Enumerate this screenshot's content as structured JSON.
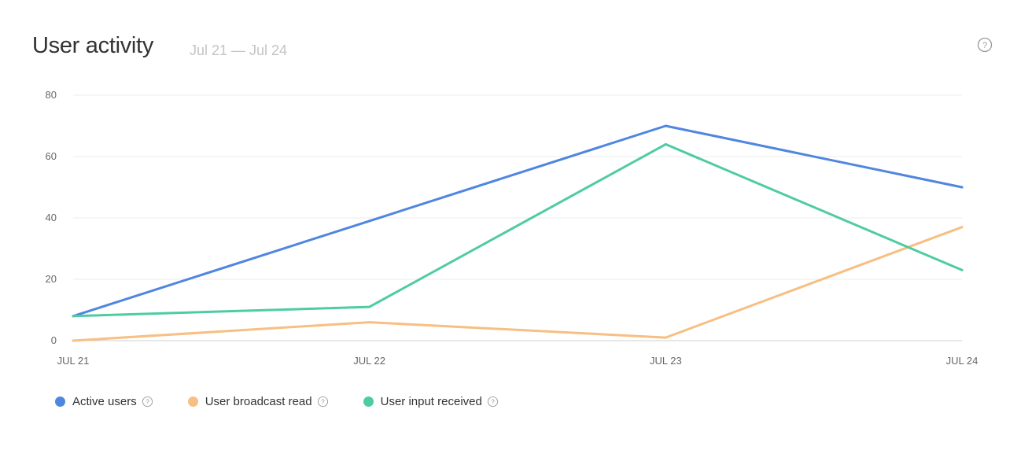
{
  "header": {
    "title": "User activity",
    "date_range": "Jul 21 — Jul 24",
    "help_icon": "question-circle-icon"
  },
  "chart_data": {
    "type": "line",
    "title": "User activity",
    "x": [
      "JUL 21",
      "JUL 22",
      "JUL 23",
      "JUL 24"
    ],
    "ylim": [
      0,
      80
    ],
    "yticks": [
      0,
      20,
      40,
      60,
      80
    ],
    "grid": true,
    "legend_position": "bottom-left",
    "series": [
      {
        "name": "Active users",
        "color": "#4f86e0",
        "values": [
          8,
          39,
          70,
          50
        ]
      },
      {
        "name": "User broadcast read",
        "color": "#f7bf83",
        "values": [
          0,
          6,
          1,
          37
        ]
      },
      {
        "name": "User input received",
        "color": "#4fcc9f",
        "values": [
          8,
          11,
          64,
          23
        ]
      }
    ]
  },
  "legend": {
    "items": [
      {
        "label": "Active users",
        "color": "#4f86e0"
      },
      {
        "label": "User broadcast read",
        "color": "#f7bf83"
      },
      {
        "label": "User input received",
        "color": "#4fcc9f"
      }
    ]
  }
}
